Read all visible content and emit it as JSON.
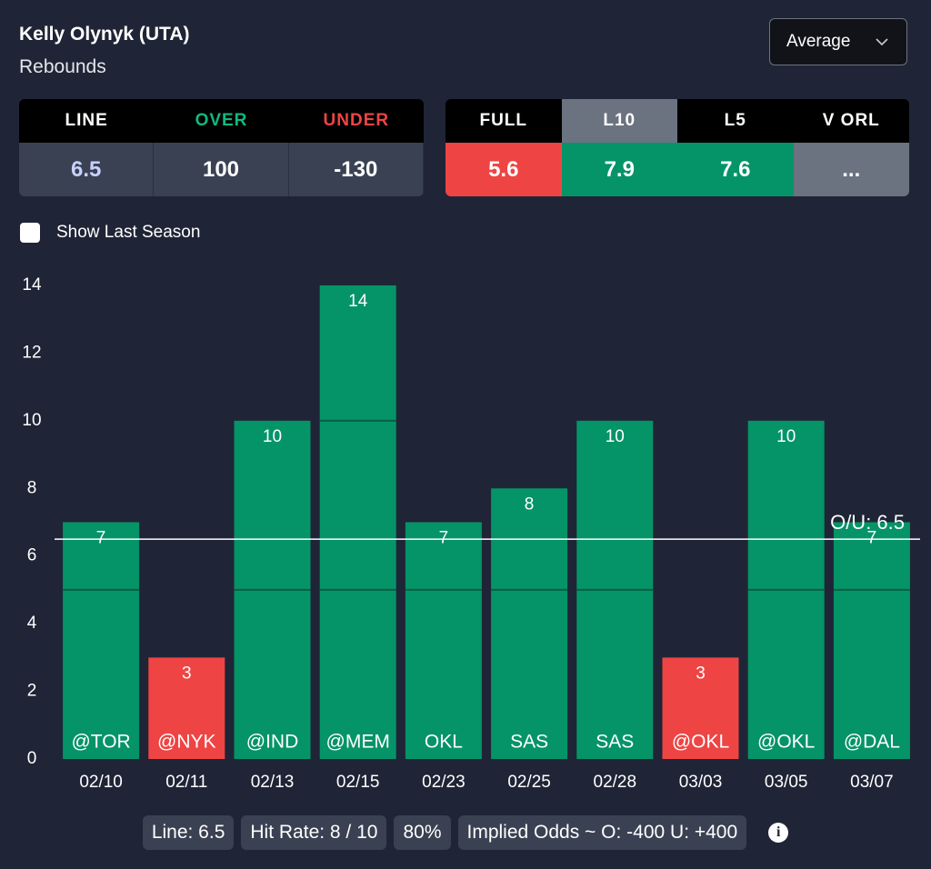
{
  "header": {
    "player": "Kelly Olynyk (UTA)",
    "stat": "Rebounds",
    "dropdown": "Average"
  },
  "odds_table": {
    "headers": [
      "LINE",
      "OVER",
      "UNDER"
    ],
    "values": [
      6.5,
      100,
      -130
    ]
  },
  "averages_table": {
    "headers": [
      "FULL",
      "L10",
      "L5",
      "V ORL"
    ],
    "values": [
      5.6,
      7.9,
      7.6,
      "..."
    ]
  },
  "checkbox_label": "Show Last Season",
  "chart_data": {
    "type": "bar",
    "categories": [
      "02/10",
      "02/11",
      "02/13",
      "02/15",
      "02/23",
      "02/25",
      "02/28",
      "03/03",
      "03/05",
      "03/07"
    ],
    "opponents": [
      "@TOR",
      "@NYK",
      "@IND",
      "@MEM",
      "OKL",
      "SAS",
      "SAS",
      "@OKL",
      "@OKL",
      "@DAL"
    ],
    "values": [
      7,
      3,
      10,
      14,
      7,
      8,
      10,
      3,
      10,
      7
    ],
    "over_color": "#049467",
    "under_color": "#ef4444",
    "line": 6.5,
    "line_label": "O/U: 6.5",
    "dividers": [
      5,
      10
    ],
    "ylim": [
      0,
      14
    ],
    "yticks": [
      0,
      2,
      4,
      6,
      8,
      10,
      12,
      14
    ]
  },
  "footer": {
    "pills": [
      "Line: 6.5",
      "Hit Rate: 8 / 10",
      "80%",
      "Implied Odds ~ O: -400 U: +400"
    ]
  }
}
